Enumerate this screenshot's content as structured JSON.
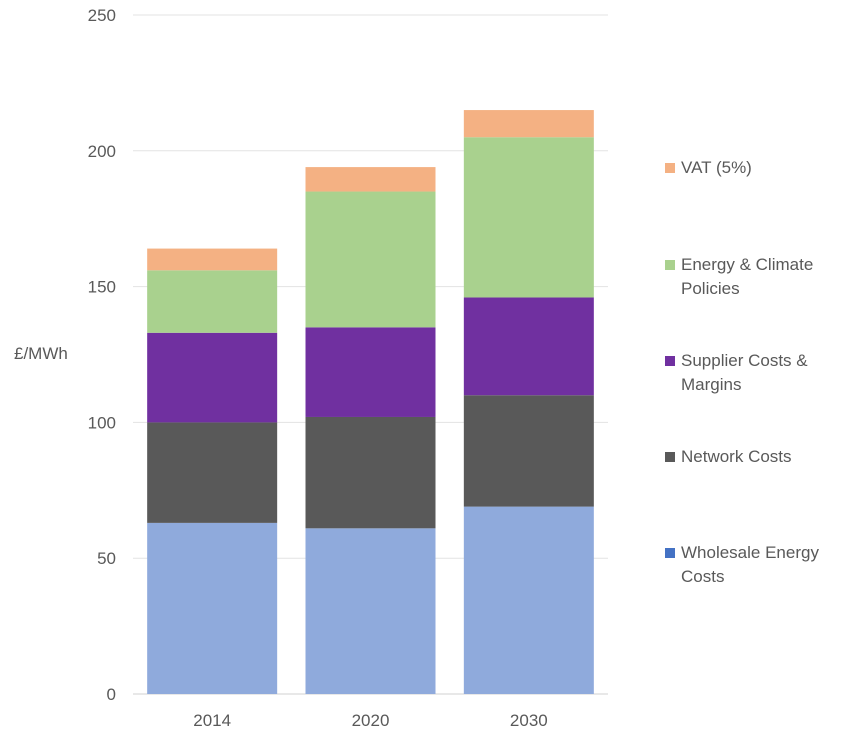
{
  "chart_data": {
    "type": "bar",
    "stacked": true,
    "categories": [
      "2014",
      "2020",
      "2030"
    ],
    "ylabel": "£/MWh",
    "ylim": [
      0,
      250
    ],
    "yticks": [
      0,
      50,
      100,
      150,
      200,
      250
    ],
    "grid": true,
    "legend_position": "right",
    "series": [
      {
        "name": "Wholesale Energy Costs",
        "values": [
          63,
          61,
          69
        ],
        "color": "#8FAADC",
        "legend_color": "#4472C4"
      },
      {
        "name": "Network Costs",
        "values": [
          37,
          41,
          41
        ],
        "color": "#595959",
        "legend_color": "#595959"
      },
      {
        "name": "Supplier Costs & Margins",
        "values": [
          33,
          33,
          36
        ],
        "color": "#7030A0",
        "legend_color": "#7030A0"
      },
      {
        "name": "Energy & Climate Policies",
        "values": [
          23,
          50,
          59
        ],
        "color": "#A9D18E",
        "legend_color": "#A9D18E"
      },
      {
        "name": "VAT (5%)",
        "values": [
          8,
          9,
          10
        ],
        "color": "#F4B183",
        "legend_color": "#F4B183"
      }
    ]
  }
}
